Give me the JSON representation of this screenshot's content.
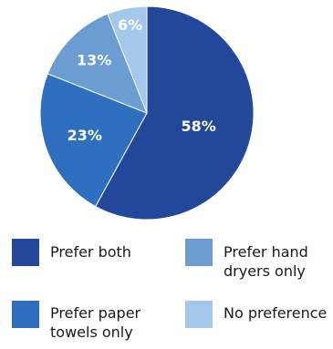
{
  "chart_data": {
    "type": "pie",
    "categories": [
      "Prefer both",
      "Prefer paper towels only",
      "Prefer hand dryers only",
      "No preference"
    ],
    "values": [
      58,
      23,
      13,
      6
    ],
    "value_labels": [
      "58%",
      "23%",
      "13%",
      "6%"
    ],
    "colors": [
      "#23479b",
      "#2e6fc0",
      "#6b9cd2",
      "#a3c8ec"
    ],
    "legend": [
      {
        "label": "Prefer both",
        "color": "#23479b"
      },
      {
        "label": "Prefer hand\ndryers only",
        "color": "#6b9cd2"
      },
      {
        "label": "Prefer paper\ntowels only",
        "color": "#2e6fc0"
      },
      {
        "label": "No preference",
        "color": "#a3c8ec"
      }
    ],
    "legend_position": "bottom"
  }
}
